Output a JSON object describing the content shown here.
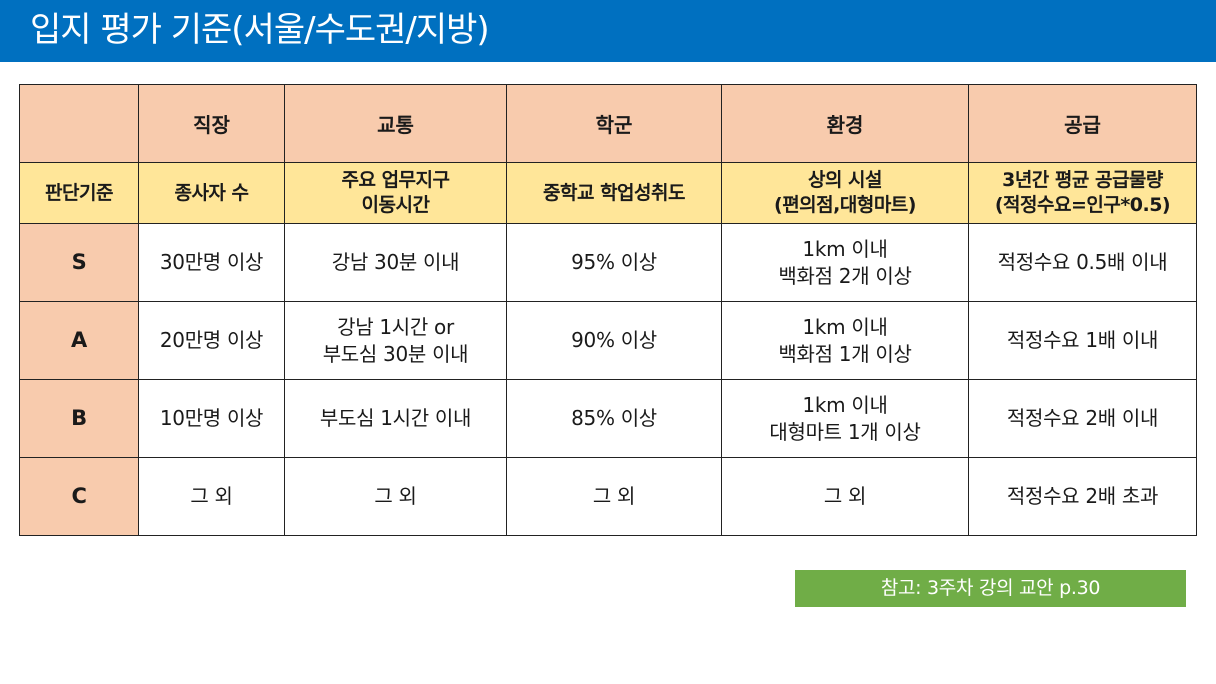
{
  "title": "입지 평가 기준(서울/수도권/지방)",
  "table": {
    "headers": [
      "",
      "직장",
      "교통",
      "학군",
      "환경",
      "공급"
    ],
    "criteria": [
      [
        "판단기준"
      ],
      [
        "종사자 수"
      ],
      [
        "주요 업무지구",
        "이동시간"
      ],
      [
        "중학교 학업성취도"
      ],
      [
        "상의 시설",
        "(편의점,대형마트)"
      ],
      [
        "3년간 평균 공급물량",
        "(적정수요=인구*0.5)"
      ]
    ],
    "rows": [
      {
        "grade": "S",
        "cells": [
          [
            "30만명 이상"
          ],
          [
            "강남 30분 이내"
          ],
          [
            "95% 이상"
          ],
          [
            "1km 이내",
            "백화점 2개 이상"
          ],
          [
            "적정수요 0.5배 이내"
          ]
        ]
      },
      {
        "grade": "A",
        "cells": [
          [
            "20만명 이상"
          ],
          [
            "강남 1시간 or",
            "부도심 30분 이내"
          ],
          [
            "90% 이상"
          ],
          [
            "1km 이내",
            "백화점 1개 이상"
          ],
          [
            "적정수요 1배 이내"
          ]
        ]
      },
      {
        "grade": "B",
        "cells": [
          [
            "10만명 이상"
          ],
          [
            "부도심 1시간 이내"
          ],
          [
            "85% 이상"
          ],
          [
            "1km 이내",
            "대형마트 1개 이상"
          ],
          [
            "적정수요 2배 이내"
          ]
        ]
      },
      {
        "grade": "C",
        "cells": [
          [
            "그 외"
          ],
          [
            "그 외"
          ],
          [
            "그 외"
          ],
          [
            "그 외"
          ],
          [
            "적정수요 2배 초과"
          ]
        ]
      }
    ]
  },
  "reference": "참고: 3주차 강의 교안 p.30",
  "colors": {
    "title_bar": "#0070c0",
    "header_fill": "#f8cbad",
    "criteria_fill": "#ffe699",
    "reference_fill": "#70ad47"
  }
}
